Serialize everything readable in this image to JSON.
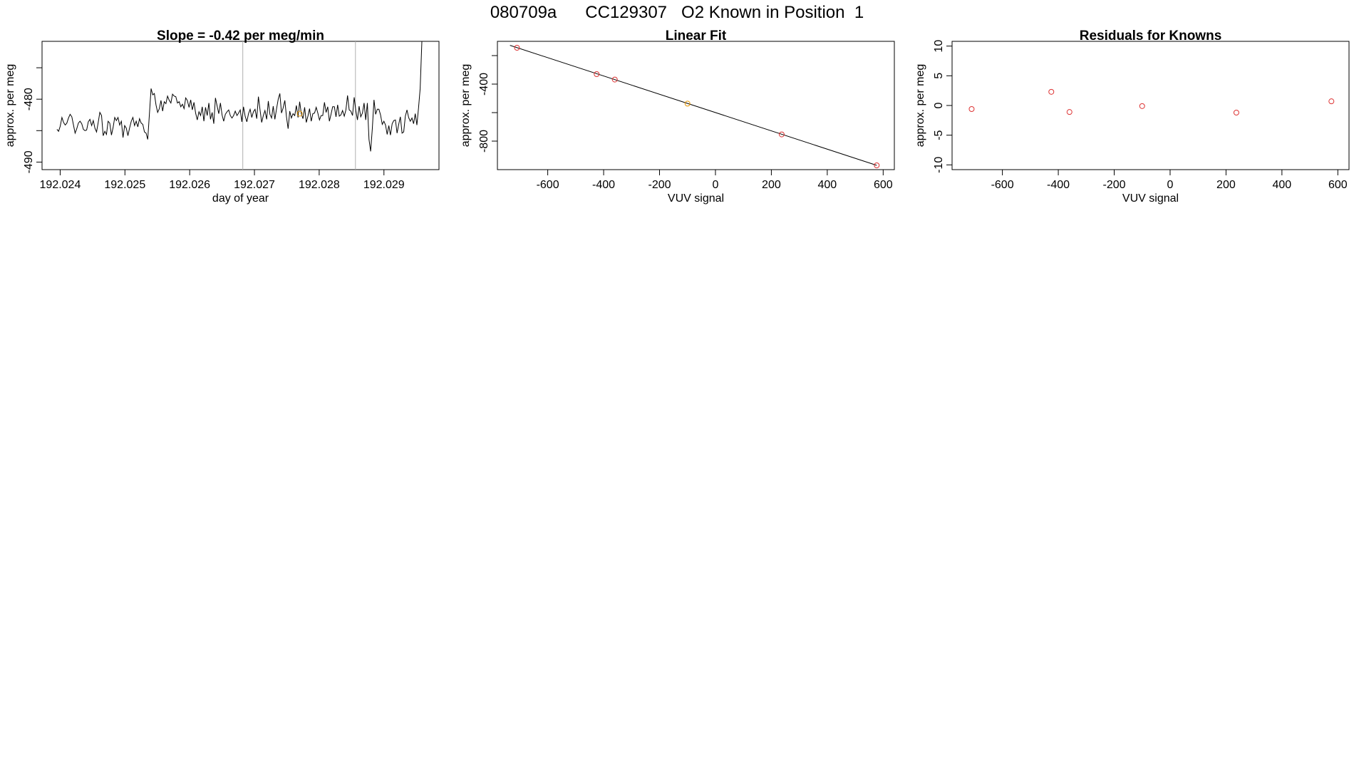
{
  "page_title": "080709a      CC129307   O2 Known in Position  1",
  "colors": {
    "line": "#000000",
    "point": "#dd3333",
    "highlight": "#e69500",
    "vline": "#b0b0b0"
  },
  "chart_data": [
    {
      "type": "line",
      "title": "Slope =  -0.42  per meg/min",
      "xlabel": "day of year",
      "ylabel": "approx. per meg",
      "xlim": [
        192.02372,
        192.02985
      ],
      "ylim": [
        -491.2,
        -470.8
      ],
      "x_ticks": [
        192.024,
        192.025,
        192.026,
        192.027,
        192.028,
        192.029
      ],
      "x_tick_labels": [
        "192.024",
        "192.025",
        "192.026",
        "192.027",
        "192.028",
        "192.029"
      ],
      "y_ticks": [
        -490,
        -485,
        -480,
        -475
      ],
      "y_tick_labels": [
        "-490",
        "",
        "-480",
        ""
      ],
      "series": [
        {
          "x_start": 192.02395,
          "x_step": 2.55e-05,
          "values": [
            -484.8,
            -485.1,
            -484.3,
            -482.9,
            -483.7,
            -484.1,
            -483.8,
            -483.0,
            -482.4,
            -482.8,
            -484.1,
            -485.4,
            -484.7,
            -483.8,
            -483.5,
            -483.9,
            -484.8,
            -485.0,
            -484.9,
            -483.6,
            -483.2,
            -484.2,
            -483.4,
            -484.6,
            -485.2,
            -483.7,
            -482.1,
            -482.6,
            -485.8,
            -485.1,
            -485.6,
            -483.5,
            -483.8,
            -485.7,
            -484.5,
            -482.9,
            -483.4,
            -482.9,
            -484.1,
            -483.5,
            -486.1,
            -484.2,
            -484.6,
            -485.8,
            -484.6,
            -483.5,
            -482.9,
            -484.2,
            -483.5,
            -484.4,
            -483.1,
            -483.8,
            -484.0,
            -485.2,
            -485.4,
            -486.4,
            -482.3,
            -478.3,
            -479.3,
            -479.1,
            -480.9,
            -482.1,
            -481.5,
            -480.2,
            -481.9,
            -480.4,
            -480.7,
            -479.5,
            -480.2,
            -480.6,
            -479.2,
            -479.5,
            -479.6,
            -480.6,
            -480.4,
            -481.2,
            -480.8,
            -481.5,
            -479.8,
            -480.2,
            -481.3,
            -480.1,
            -481.7,
            -480.5,
            -482.2,
            -483.3,
            -482.0,
            -482.6,
            -481.2,
            -483.5,
            -481.3,
            -482.6,
            -480.6,
            -483.2,
            -482.1,
            -483.9,
            -479.8,
            -481.1,
            -482.3,
            -480.6,
            -482.5,
            -483.5,
            -482.4,
            -482.0,
            -481.7,
            -482.6,
            -483.0,
            -482.6,
            -481.9,
            -482.6,
            -482.2,
            -481.7,
            -483.6,
            -481.2,
            -482.7,
            -483.6,
            -482.3,
            -481.6,
            -482.9,
            -482.0,
            -481.6,
            -483.1,
            -479.6,
            -481.7,
            -483.7,
            -482.6,
            -481.8,
            -483.2,
            -480.3,
            -482.4,
            -483.0,
            -481.1,
            -483.2,
            -481.5,
            -480.0,
            -479.1,
            -482.2,
            -481.4,
            -480.2,
            -482.8,
            -484.7,
            -481.9,
            -483.0,
            -482.3,
            -482.6,
            -481.0,
            -482.9,
            -480.4,
            -482.3,
            -483.1,
            -481.3,
            -483.7,
            -482.7,
            -481.5,
            -483.5,
            -482.3,
            -482.2,
            -481.3,
            -482.2,
            -483.3,
            -482.6,
            -482.6,
            -480.5,
            -482.1,
            -481.2,
            -483.5,
            -482.4,
            -481.2,
            -481.2,
            -482.8,
            -480.9,
            -482.7,
            -482.5,
            -481.8,
            -482.7,
            -481.7,
            -479.4,
            -481.7,
            -481.9,
            -482.6,
            -479.7,
            -481.8,
            -483.3,
            -481.1,
            -482.8,
            -482.2,
            -480.6,
            -483.3,
            -480.6,
            -486.4,
            -488.3,
            -484.6,
            -480.1,
            -482.4,
            -481.6,
            -481.6,
            -482.5,
            -484.0,
            -483.5,
            -484.1,
            -485.6,
            -484.2,
            -485.7,
            -483.9,
            -483.4,
            -483.3,
            -485.4,
            -484.0,
            -482.8,
            -485.4,
            -485.2,
            -482.7,
            -481.7,
            -482.9,
            -483.5,
            -483.0,
            -483.9,
            -482.3,
            -484.1,
            -481.4,
            -478.3,
            -470.8
          ]
        }
      ],
      "vlines": [
        192.02682,
        192.02856
      ],
      "highlight_point": {
        "x": 192.0277,
        "y": -482.3
      }
    },
    {
      "type": "scatter",
      "title": "Linear Fit",
      "xlabel": "VUV signal",
      "ylabel": "approx. per meg",
      "xlim": [
        -780,
        640
      ],
      "ylim": [
        -1000,
        -100
      ],
      "x_ticks": [
        -600,
        -400,
        -200,
        0,
        200,
        400,
        600
      ],
      "x_tick_labels": [
        "-600",
        "-400",
        "-200",
        "0",
        "200",
        "400",
        "600"
      ],
      "y_ticks": [
        -800,
        -600,
        -400,
        -200
      ],
      "y_tick_labels": [
        "-800",
        "",
        "-400",
        ""
      ],
      "points": [
        {
          "x": -710,
          "y": -145,
          "highlight": false
        },
        {
          "x": -425,
          "y": -330,
          "highlight": false
        },
        {
          "x": -360,
          "y": -368,
          "highlight": false
        },
        {
          "x": -100,
          "y": -537,
          "highlight": true
        },
        {
          "x": 237,
          "y": -753,
          "highlight": false
        },
        {
          "x": 577,
          "y": -970,
          "highlight": false
        }
      ],
      "fit_line": {
        "x": [
          -735,
          577
        ],
        "y": [
          -128,
          -970
        ]
      }
    },
    {
      "type": "scatter",
      "title": "Residuals for Knowns",
      "xlabel": "VUV signal",
      "ylabel": "approx. per meg",
      "xlim": [
        -780,
        640
      ],
      "ylim": [
        -10.8,
        10.8
      ],
      "x_ticks": [
        -600,
        -400,
        -200,
        0,
        200,
        400,
        600
      ],
      "x_tick_labels": [
        "-600",
        "-400",
        "-200",
        "0",
        "200",
        "400",
        "600"
      ],
      "y_ticks": [
        -10,
        -5,
        0,
        5,
        10
      ],
      "y_tick_labels": [
        "-10",
        "-5",
        "0",
        "5",
        "10"
      ],
      "points": [
        {
          "x": -710,
          "y": -0.6
        },
        {
          "x": -425,
          "y": 2.3
        },
        {
          "x": -360,
          "y": -1.1
        },
        {
          "x": -100,
          "y": -0.1
        },
        {
          "x": 237,
          "y": -1.2
        },
        {
          "x": 577,
          "y": 0.7
        }
      ]
    }
  ]
}
